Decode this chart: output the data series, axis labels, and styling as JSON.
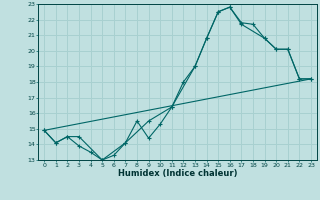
{
  "xlabel": "Humidex (Indice chaleur)",
  "bg_color": "#c0e0e0",
  "grid_color": "#a8d0d0",
  "line_color": "#006666",
  "xlim": [
    -0.5,
    23.5
  ],
  "ylim": [
    13,
    23
  ],
  "xticks": [
    0,
    1,
    2,
    3,
    4,
    5,
    6,
    7,
    8,
    9,
    10,
    11,
    12,
    13,
    14,
    15,
    16,
    17,
    18,
    19,
    20,
    21,
    22,
    23
  ],
  "yticks": [
    13,
    14,
    15,
    16,
    17,
    18,
    19,
    20,
    21,
    22,
    23
  ],
  "line1_x": [
    0,
    1,
    2,
    3,
    4,
    5,
    6,
    7,
    8,
    9,
    10,
    11,
    12,
    13,
    14,
    15,
    16,
    17,
    18,
    19,
    20,
    21,
    22,
    23
  ],
  "line1_y": [
    14.9,
    14.1,
    14.5,
    13.9,
    13.5,
    13.0,
    13.3,
    14.1,
    15.5,
    14.4,
    15.3,
    16.4,
    18.0,
    19.0,
    20.8,
    22.5,
    22.8,
    21.8,
    21.7,
    20.8,
    20.1,
    20.1,
    18.2,
    18.2
  ],
  "line2_x": [
    0,
    1,
    2,
    3,
    5,
    7,
    9,
    11,
    13,
    14,
    15,
    16,
    17,
    19,
    20,
    21,
    22,
    23
  ],
  "line2_y": [
    14.9,
    14.1,
    14.5,
    14.5,
    13.0,
    14.1,
    15.5,
    16.4,
    19.0,
    20.8,
    22.5,
    22.8,
    21.7,
    20.8,
    20.1,
    20.1,
    18.2,
    18.2
  ],
  "line3_x": [
    0,
    23
  ],
  "line3_y": [
    14.9,
    18.2
  ]
}
